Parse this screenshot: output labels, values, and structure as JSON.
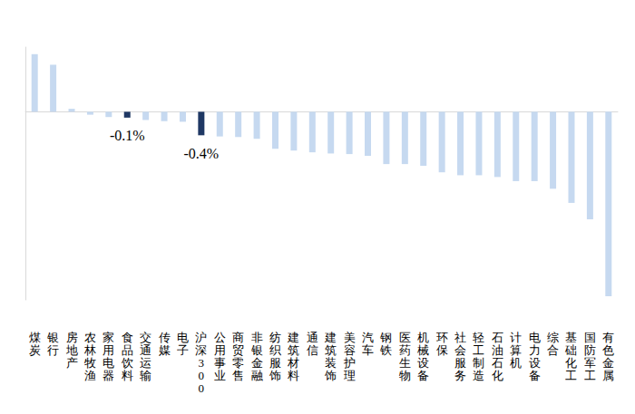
{
  "chart_data": {
    "type": "bar",
    "categories": [
      "煤炭",
      "银行",
      "房地产",
      "农林牧渔",
      "家用电器",
      "食品饮料",
      "交通运输",
      "传媒",
      "电子",
      "沪深300",
      "公用事业",
      "商贸零售",
      "非银金融",
      "纺织服饰",
      "建筑材料",
      "通信",
      "建筑装饰",
      "美容护理",
      "汽车",
      "钢铁",
      "医药生物",
      "机械设备",
      "环保",
      "社会服务",
      "轻工制造",
      "石油石化",
      "计算机",
      "电力设备",
      "综合",
      "基础化工",
      "国防军工",
      "有色金属"
    ],
    "values": [
      0.98,
      0.8,
      0.05,
      -0.05,
      -0.09,
      -0.1,
      -0.14,
      -0.16,
      -0.17,
      -0.4,
      -0.42,
      -0.43,
      -0.46,
      -0.63,
      -0.66,
      -0.69,
      -0.71,
      -0.72,
      -0.75,
      -0.89,
      -0.89,
      -0.92,
      -1.03,
      -1.08,
      -1.08,
      -1.11,
      -1.18,
      -1.18,
      -1.31,
      -1.55,
      -1.83,
      -3.14
    ],
    "value_labels": [
      null,
      null,
      null,
      null,
      null,
      "-0.1%",
      null,
      null,
      null,
      "-0.4%",
      null,
      null,
      null,
      null,
      null,
      null,
      null,
      null,
      null,
      null,
      null,
      null,
      null,
      null,
      null,
      null,
      null,
      null,
      null,
      null,
      null,
      null
    ],
    "colors": [
      "#c6d9f0",
      "#c6d9f0",
      "#c6d9f0",
      "#c6d9f0",
      "#c6d9f0",
      "#1f3864",
      "#c6d9f0",
      "#c6d9f0",
      "#c6d9f0",
      "#1f3864",
      "#c6d9f0",
      "#c6d9f0",
      "#c6d9f0",
      "#c6d9f0",
      "#c6d9f0",
      "#c6d9f0",
      "#c6d9f0",
      "#c6d9f0",
      "#c6d9f0",
      "#c6d9f0",
      "#c6d9f0",
      "#c6d9f0",
      "#c6d9f0",
      "#c6d9f0",
      "#c6d9f0",
      "#c6d9f0",
      "#c6d9f0",
      "#c6d9f0",
      "#c6d9f0",
      "#c6d9f0",
      "#c6d9f0",
      "#c6d9f0"
    ],
    "ylim": [
      -3.2,
      1.1
    ],
    "grid": false,
    "data_labels": true,
    "tick_labels": "x"
  }
}
